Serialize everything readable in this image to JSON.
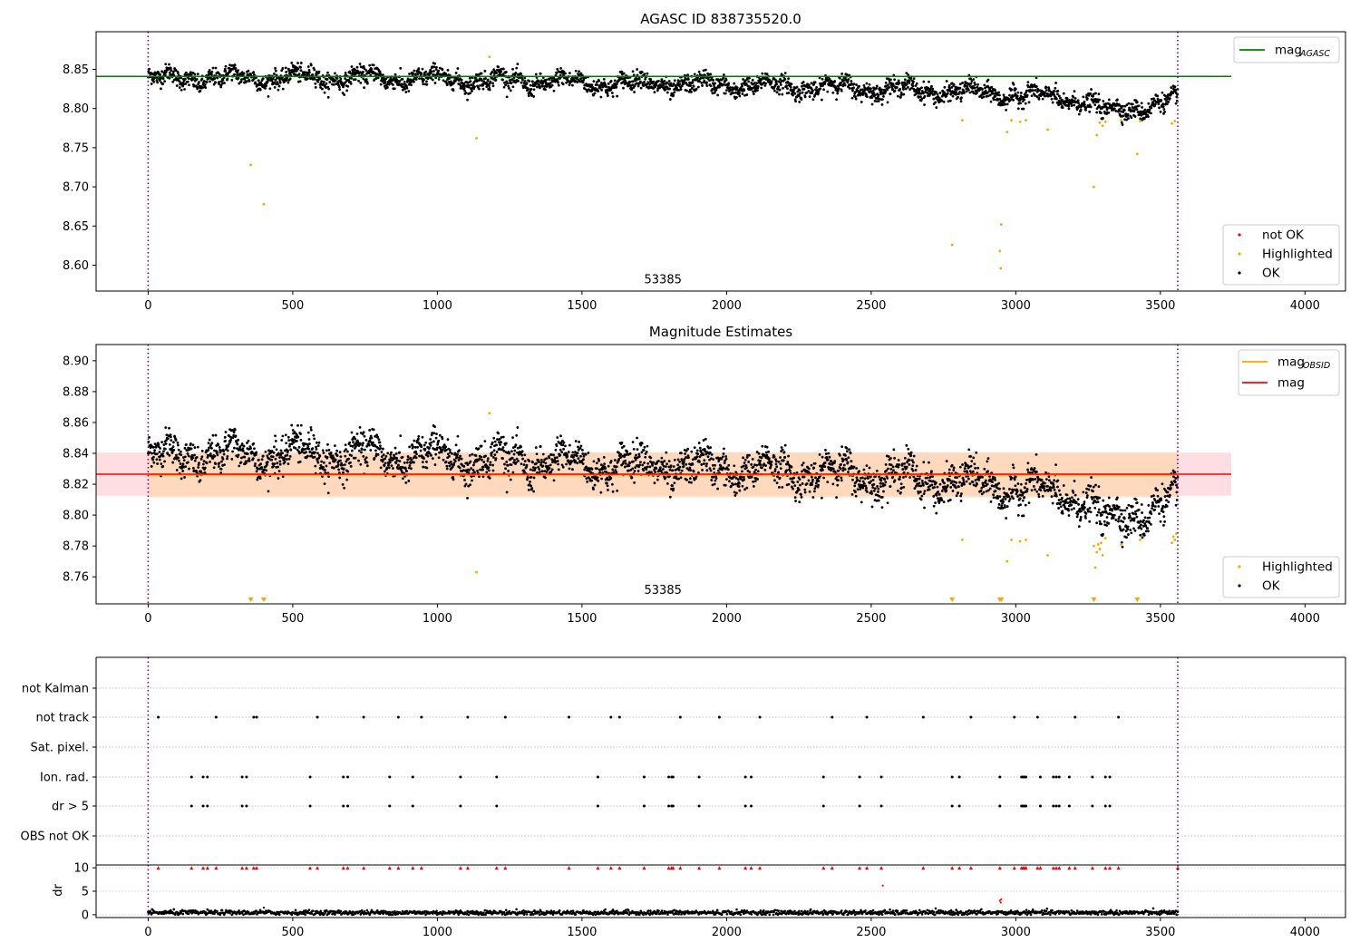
{
  "chart_data": [
    {
      "type": "scatter",
      "title": "AGASC ID 838735520.0",
      "xlim": [
        -180,
        4140
      ],
      "ylim": [
        8.567,
        8.898
      ],
      "xticks": [
        0,
        500,
        1000,
        1500,
        2000,
        2500,
        3000,
        3500,
        4000
      ],
      "xtick_labels": [
        "0",
        "500",
        "1000",
        "1500",
        "2000",
        "2500",
        "3000",
        "3500",
        "4000"
      ],
      "yticks": [
        8.6,
        8.65,
        8.7,
        8.75,
        8.8,
        8.85
      ],
      "ytick_labels": [
        "8.60",
        "8.65",
        "8.70",
        "8.75",
        "8.80",
        "8.85"
      ],
      "vlines": [
        0,
        3560
      ],
      "vline_color": "#800080",
      "hline": {
        "y": 8.841,
        "x_range": [
          -180,
          3745
        ],
        "color": "#008000",
        "label": "mag",
        "label_sub": "AGASC"
      },
      "annotation": {
        "text": "53385",
        "x": 1780,
        "y": 8.577
      },
      "highlighted_points": [
        [
          355,
          8.728
        ],
        [
          400,
          8.678
        ],
        [
          1135,
          8.762
        ],
        [
          1180,
          8.866
        ],
        [
          2780,
          8.626
        ],
        [
          2815,
          8.785
        ],
        [
          2945,
          8.618
        ],
        [
          2948,
          8.596
        ],
        [
          2950,
          8.652
        ],
        [
          2970,
          8.77
        ],
        [
          2985,
          8.785
        ],
        [
          3015,
          8.783
        ],
        [
          3035,
          8.785
        ],
        [
          3110,
          8.773
        ],
        [
          3270,
          8.7
        ],
        [
          3280,
          8.766
        ],
        [
          3290,
          8.782
        ],
        [
          3300,
          8.778
        ],
        [
          3310,
          8.783
        ],
        [
          3365,
          8.785
        ],
        [
          3420,
          8.742
        ],
        [
          3430,
          8.784
        ],
        [
          3540,
          8.781
        ],
        [
          3550,
          8.784
        ]
      ],
      "ok_series": {
        "x_range": [
          0,
          3560
        ],
        "count": 3000,
        "trend": [
          [
            0,
            8.838
          ],
          [
            500,
            8.84
          ],
          [
            1000,
            8.838
          ],
          [
            1500,
            8.833
          ],
          [
            2000,
            8.83
          ],
          [
            2500,
            8.826
          ],
          [
            3000,
            8.818
          ],
          [
            3250,
            8.81
          ],
          [
            3300,
            8.795
          ],
          [
            3560,
            8.81
          ]
        ],
        "scatter_sd": 0.008
      },
      "legend": {
        "position": "lower right",
        "entries": [
          {
            "label": "not OK",
            "color": "#ff0000"
          },
          {
            "label": "Highlighted",
            "color": "#ffa500"
          },
          {
            "label": "OK",
            "color": "#000000"
          }
        ]
      }
    },
    {
      "type": "scatter",
      "title": "Magnitude Estimates",
      "xlim": [
        -180,
        4140
      ],
      "ylim": [
        8.7425,
        8.9105
      ],
      "xticks": [
        0,
        500,
        1000,
        1500,
        2000,
        2500,
        3000,
        3500,
        4000
      ],
      "xtick_labels": [
        "0",
        "500",
        "1000",
        "1500",
        "2000",
        "2500",
        "3000",
        "3500",
        "4000"
      ],
      "yticks": [
        8.76,
        8.78,
        8.8,
        8.82,
        8.84,
        8.86,
        8.88,
        8.9
      ],
      "ytick_labels": [
        "8.76",
        "8.78",
        "8.80",
        "8.82",
        "8.84",
        "8.86",
        "8.88",
        "8.90"
      ],
      "vlines": [
        0,
        3560
      ],
      "vline_color": "#800080",
      "mag_line": {
        "y": 8.8265,
        "band": [
          8.8125,
          8.8405
        ],
        "x_range": [
          -180,
          3745
        ],
        "color": "#ff0000",
        "band_color": "#ffb6c1",
        "label": "mag"
      },
      "mag_obsid": {
        "y": 8.826,
        "band": [
          8.8115,
          8.8405
        ],
        "x_range": [
          0,
          3560
        ],
        "color": "#ffa500",
        "band_color": "#ffd7b0",
        "label": "mag",
        "label_sub": "OBSID"
      },
      "annotation": {
        "text": "53385",
        "x": 1780,
        "y": 8.749
      },
      "highlighted_points": [
        [
          1135,
          8.763
        ],
        [
          1180,
          8.866
        ],
        [
          2815,
          8.784
        ],
        [
          2970,
          8.77
        ],
        [
          2985,
          8.784
        ],
        [
          3015,
          8.783
        ],
        [
          3035,
          8.784
        ],
        [
          3110,
          8.774
        ],
        [
          3270,
          8.78
        ],
        [
          3275,
          8.766
        ],
        [
          3280,
          8.776
        ],
        [
          3285,
          8.781
        ],
        [
          3290,
          8.778
        ],
        [
          3295,
          8.782
        ],
        [
          3300,
          8.774
        ],
        [
          3310,
          8.785
        ],
        [
          3365,
          8.781
        ],
        [
          3430,
          8.784
        ],
        [
          3540,
          8.782
        ],
        [
          3545,
          8.786
        ],
        [
          3550,
          8.784
        ],
        [
          3555,
          8.788
        ]
      ],
      "offscale_markers_x": [
        355,
        400,
        2780,
        2945,
        2950,
        3270,
        3420
      ],
      "ok_series": {
        "x_range": [
          0,
          3560
        ],
        "count": 3000,
        "trend": [
          [
            0,
            8.838
          ],
          [
            500,
            8.84
          ],
          [
            1000,
            8.838
          ],
          [
            1500,
            8.833
          ],
          [
            2000,
            8.83
          ],
          [
            2500,
            8.826
          ],
          [
            3000,
            8.818
          ],
          [
            3250,
            8.81
          ],
          [
            3300,
            8.795
          ],
          [
            3560,
            8.81
          ]
        ],
        "scatter_sd": 0.008
      },
      "legend": {
        "position": "lower right",
        "entries": [
          {
            "label": "Highlighted",
            "color": "#ffa500"
          },
          {
            "label": "OK",
            "color": "#000000"
          }
        ]
      },
      "legend_top": {
        "position": "upper right",
        "entries": [
          {
            "label": "mag",
            "label_sub": "OBSID",
            "color": "#ffa500"
          },
          {
            "label": "mag",
            "color": "#ff0000"
          }
        ]
      }
    },
    {
      "type": "scatter",
      "title": "",
      "xlim": [
        -180,
        4140
      ],
      "categories": [
        "not Kalman",
        "not track",
        "Sat. pixel.",
        "Ion. rad.",
        "dr > 5",
        "OBS not OK"
      ],
      "vlines": [
        0,
        3560
      ],
      "vline_color": "#800080",
      "flags": {
        "not Kalman": [],
        "not track": [
          35,
          235,
          365,
          375,
          585,
          745,
          865,
          945,
          1105,
          1235,
          1455,
          1600,
          1630,
          1840,
          1975,
          2115,
          2365,
          2485,
          2680,
          2845,
          2995,
          3075,
          3205,
          3355
        ],
        "Sat. pixel.": [],
        "Ion. rad.": [
          150,
          190,
          205,
          325,
          340,
          560,
          675,
          690,
          835,
          915,
          1080,
          1205,
          1555,
          1715,
          1800,
          1810,
          1815,
          1905,
          2065,
          2085,
          2335,
          2460,
          2535,
          2780,
          2805,
          2945,
          3020,
          3025,
          3030,
          3035,
          3085,
          3130,
          3140,
          3150,
          3185,
          3265,
          3310,
          3325
        ],
        "dr > 5": [
          150,
          190,
          205,
          325,
          340,
          560,
          675,
          690,
          835,
          915,
          1080,
          1205,
          1555,
          1715,
          1800,
          1810,
          1815,
          1905,
          2065,
          2085,
          2335,
          2460,
          2535,
          2780,
          2805,
          2945,
          3020,
          3025,
          3030,
          3035,
          3085,
          3130,
          3140,
          3150,
          3185,
          3265,
          3310,
          3325
        ],
        "OBS not OK": []
      }
    },
    {
      "type": "scatter",
      "title": "",
      "xlim": [
        -180,
        4140
      ],
      "ylim": [
        -0.6,
        10.6
      ],
      "ylabel": "dr",
      "yticks": [
        0,
        5,
        10
      ],
      "ytick_labels": [
        "0",
        "5",
        "10"
      ],
      "xticks": [
        0,
        500,
        1000,
        1500,
        2000,
        2500,
        3000,
        3500,
        4000
      ],
      "xtick_labels": [
        "0",
        "500",
        "1000",
        "1500",
        "2000",
        "2500",
        "3000",
        "3500",
        "4000"
      ],
      "vlines": [
        0,
        3560
      ],
      "vline_color": "#800080",
      "clipped_markers_x": [
        35,
        150,
        190,
        205,
        235,
        325,
        340,
        365,
        375,
        560,
        585,
        675,
        690,
        745,
        835,
        865,
        915,
        945,
        1080,
        1105,
        1205,
        1235,
        1455,
        1555,
        1600,
        1630,
        1715,
        1800,
        1810,
        1815,
        1840,
        1905,
        1975,
        2065,
        2085,
        2115,
        2335,
        2365,
        2460,
        2485,
        2535,
        2680,
        2780,
        2805,
        2845,
        2945,
        2995,
        3020,
        3025,
        3030,
        3035,
        3075,
        3085,
        3130,
        3140,
        3150,
        3185,
        3205,
        3265,
        3310,
        3325,
        3355,
        3560
      ],
      "outliers": [
        [
          2540,
          6.2
        ],
        [
          2945,
          3.0
        ],
        [
          2948,
          2.6
        ],
        [
          2950,
          3.3
        ],
        [
          400,
          1.5
        ]
      ],
      "baseline": {
        "x_range": [
          0,
          3560
        ],
        "typical": 0.45
      }
    }
  ]
}
